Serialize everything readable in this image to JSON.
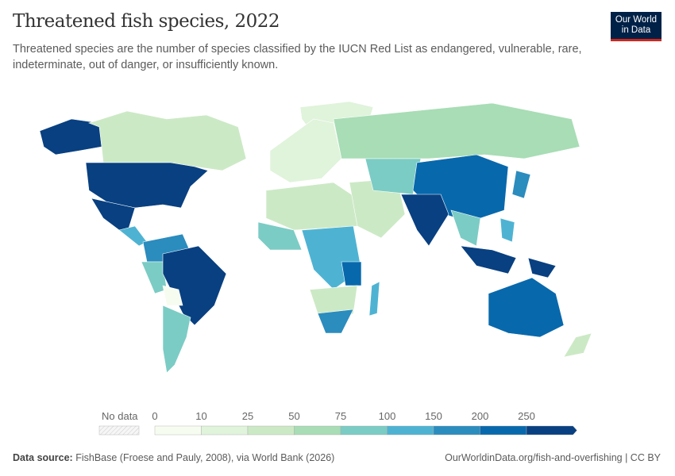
{
  "header": {
    "title": "Threatened fish species, 2022",
    "subtitle": "Threatened species are the number of species classified by the IUCN Red List as endangered, vulnerable, rare, indeterminate, out of danger, or insufficiently known.",
    "logo_line1": "Our World",
    "logo_line2": "in Data"
  },
  "legend": {
    "no_data_label": "No data",
    "ticks": [
      "0",
      "10",
      "25",
      "50",
      "75",
      "100",
      "150",
      "200",
      "250"
    ],
    "colors": [
      "#f7fcf0",
      "#e0f3db",
      "#cce9c5",
      "#a8ddb5",
      "#7bccc4",
      "#4eb3d3",
      "#2b8cbe",
      "#0868ac",
      "#084081"
    ],
    "no_data_color": "#eeeeee"
  },
  "footer": {
    "source_label": "Data source:",
    "source_text": "FishBase (Froese and Pauly, 2008), via World Bank (2026)",
    "url": "OurWorldinData.org/fish-and-overfishing | CC BY"
  }
}
